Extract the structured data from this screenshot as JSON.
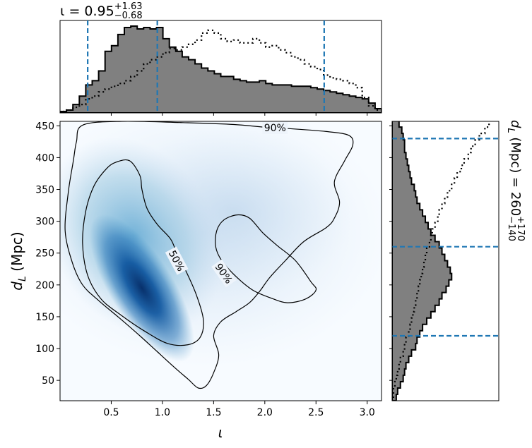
{
  "colors": {
    "hist_fill": "#808080",
    "hist_edge": "#000000",
    "credible_line": "#1f77b4",
    "density_low": "#f7fbff",
    "density_high": "#08306b",
    "contour": "#000000"
  },
  "chart_data": [
    {
      "id": "joint",
      "type": "heatmap",
      "title": "",
      "xlabel": "ι",
      "ylabel_main": "d",
      "ylabel_sub": "L",
      "ylabel_unit": "(Mpc)",
      "xlim": [
        0.0,
        3.14
      ],
      "ylim": [
        18,
        457
      ],
      "xticks": [
        0.5,
        1.0,
        1.5,
        2.0,
        2.5,
        3.0
      ],
      "xtick_labels": [
        "0.5",
        "1.0",
        "1.5",
        "2.0",
        "2.5",
        "3.0"
      ],
      "yticks": [
        50,
        100,
        150,
        200,
        250,
        300,
        350,
        400,
        450
      ],
      "ytick_labels": [
        "50",
        "100",
        "150",
        "200",
        "250",
        "300",
        "350",
        "400",
        "450"
      ],
      "density_peak": {
        "x": 0.8,
        "y": 195
      },
      "contour_labels": [
        {
          "text": "90%",
          "x": 2.1,
          "y": 447
        },
        {
          "text": "50%",
          "x": 1.14,
          "y": 238
        },
        {
          "text": "90%",
          "x": 1.6,
          "y": 218
        }
      ],
      "contours": [
        {
          "level": "90%",
          "points": [
            [
              0.22,
              451
            ],
            [
              0.6,
              457
            ],
            [
              1.2,
              455
            ],
            [
              1.7,
              452
            ],
            [
              2.05,
              447
            ],
            [
              2.2,
              446
            ],
            [
              2.6,
              441
            ],
            [
              2.82,
              435
            ],
            [
              2.86,
              420
            ],
            [
              2.78,
              395
            ],
            [
              2.68,
              362
            ],
            [
              2.73,
              330
            ],
            [
              2.68,
              305
            ],
            [
              2.6,
              290
            ],
            [
              2.38,
              268
            ],
            [
              2.2,
              238
            ],
            [
              2.05,
              212
            ],
            [
              1.95,
              190
            ],
            [
              1.85,
              172
            ],
            [
              1.72,
              158
            ],
            [
              1.57,
              142
            ],
            [
              1.5,
              120
            ],
            [
              1.55,
              90
            ],
            [
              1.5,
              62
            ],
            [
              1.43,
              42
            ],
            [
              1.35,
              38
            ],
            [
              1.25,
              52
            ],
            [
              1.12,
              70
            ],
            [
              0.95,
              95
            ],
            [
              0.78,
              120
            ],
            [
              0.58,
              148
            ],
            [
              0.38,
              175
            ],
            [
              0.22,
              200
            ],
            [
              0.12,
              235
            ],
            [
              0.05,
              285
            ],
            [
              0.08,
              345
            ],
            [
              0.13,
              395
            ],
            [
              0.16,
              425
            ],
            [
              0.22,
              451
            ]
          ]
        },
        {
          "level": "50%",
          "points": [
            [
              0.55,
              393
            ],
            [
              0.68,
              395
            ],
            [
              0.78,
              372
            ],
            [
              0.8,
              350
            ],
            [
              0.85,
              320
            ],
            [
              0.95,
              295
            ],
            [
              1.08,
              272
            ],
            [
              1.14,
              250
            ],
            [
              1.22,
              225
            ],
            [
              1.33,
              185
            ],
            [
              1.4,
              145
            ],
            [
              1.37,
              118
            ],
            [
              1.25,
              106
            ],
            [
              1.05,
              108
            ],
            [
              0.82,
              128
            ],
            [
              0.6,
              152
            ],
            [
              0.4,
              178
            ],
            [
              0.27,
              215
            ],
            [
              0.22,
              265
            ],
            [
              0.25,
              315
            ],
            [
              0.33,
              355
            ],
            [
              0.45,
              382
            ],
            [
              0.55,
              393
            ]
          ]
        },
        {
          "level": "90%",
          "points": [
            [
              1.73,
              310
            ],
            [
              1.85,
              305
            ],
            [
              1.98,
              282
            ],
            [
              2.12,
              262
            ],
            [
              2.3,
              238
            ],
            [
              2.45,
              205
            ],
            [
              2.5,
              192
            ],
            [
              2.4,
              178
            ],
            [
              2.22,
              172
            ],
            [
              2.05,
              180
            ],
            [
              1.88,
              192
            ],
            [
              1.72,
              213
            ],
            [
              1.58,
              238
            ],
            [
              1.52,
              260
            ],
            [
              1.53,
              285
            ],
            [
              1.6,
              302
            ],
            [
              1.73,
              310
            ]
          ]
        }
      ]
    },
    {
      "id": "iota-marginal",
      "type": "bar",
      "title": "ι = 0.95",
      "title_sup": "+1.63",
      "title_sub": "−0.68",
      "xlim": [
        0.0,
        3.14
      ],
      "bin_edges": [
        0.0,
        0.0628,
        0.1256,
        0.1884,
        0.2512,
        0.314,
        0.3768,
        0.4396,
        0.5024,
        0.5652,
        0.628,
        0.6908,
        0.7536,
        0.8164,
        0.8792,
        0.942,
        1.0048,
        1.0676,
        1.1304,
        1.1932,
        1.256,
        1.3188,
        1.3816,
        1.4444,
        1.5072,
        1.57,
        1.6328,
        1.6956,
        1.7584,
        1.8212,
        1.884,
        1.9468,
        2.0096,
        2.0724,
        2.1352,
        2.198,
        2.2608,
        2.3236,
        2.3864,
        2.4492,
        2.512,
        2.5748,
        2.6376,
        2.7004,
        2.7632,
        2.826,
        2.8888,
        2.9516,
        3.0144,
        3.0772,
        3.14
      ],
      "values": [
        1,
        2,
        6,
        12,
        20,
        23,
        30,
        44,
        48,
        56,
        61,
        62,
        60,
        61,
        60,
        61,
        53,
        47,
        44,
        40,
        38,
        35,
        32,
        30,
        28,
        26,
        26,
        24,
        23,
        22,
        22,
        23,
        21,
        20,
        20,
        20,
        19,
        19,
        19,
        18,
        17,
        16,
        15,
        14,
        13,
        12,
        11,
        10,
        7,
        3
      ],
      "reference_values": [
        1,
        2,
        4,
        6,
        10,
        12,
        15,
        17,
        19,
        21,
        23,
        26,
        30,
        35,
        38,
        40,
        43,
        46,
        45,
        47,
        49,
        52,
        57,
        59,
        57,
        53,
        51,
        52,
        50,
        50,
        53,
        50,
        47,
        48,
        45,
        43,
        40,
        38,
        35,
        33,
        31,
        27,
        25,
        24,
        23,
        21,
        18,
        11,
        5,
        2
      ],
      "credible_interval": [
        0.27,
        0.95,
        2.58
      ]
    },
    {
      "id": "dl-marginal",
      "type": "bar",
      "orientation": "horizontal",
      "title": "d",
      "title_sub_label": "L",
      "title_rest": " (Mpc) = 260",
      "title_sup": "+170",
      "title_sub": "−140",
      "ylim": [
        18,
        457
      ],
      "bin_edges": [
        18,
        28,
        38,
        48,
        58,
        68,
        78,
        88,
        98,
        108,
        118,
        128,
        138,
        148,
        158,
        168,
        178,
        188,
        198,
        208,
        218,
        228,
        238,
        248,
        258,
        268,
        278,
        288,
        298,
        308,
        318,
        328,
        338,
        348,
        358,
        368,
        378,
        388,
        398,
        408,
        418,
        428,
        438,
        448,
        458
      ],
      "values": [
        3,
        4,
        6,
        8,
        9,
        10,
        12,
        14,
        17,
        18,
        20,
        22,
        25,
        28,
        31,
        34,
        36,
        39,
        41,
        43,
        42,
        40,
        38,
        36,
        34,
        31,
        28,
        26,
        24,
        22,
        20,
        18,
        17,
        16,
        14,
        13,
        12,
        11,
        10,
        9,
        9,
        8,
        7,
        5
      ],
      "reference_values": [
        1,
        1,
        2,
        3,
        4,
        5,
        6,
        8,
        9,
        10,
        12,
        13,
        14,
        15,
        16,
        17,
        18,
        19,
        20,
        21,
        22,
        23,
        24,
        25,
        27,
        28,
        29,
        31,
        33,
        34,
        36,
        38,
        40,
        43,
        45,
        47,
        50,
        52,
        55,
        57,
        60,
        63,
        67,
        70
      ],
      "credible_interval": [
        120,
        260,
        430
      ]
    }
  ]
}
